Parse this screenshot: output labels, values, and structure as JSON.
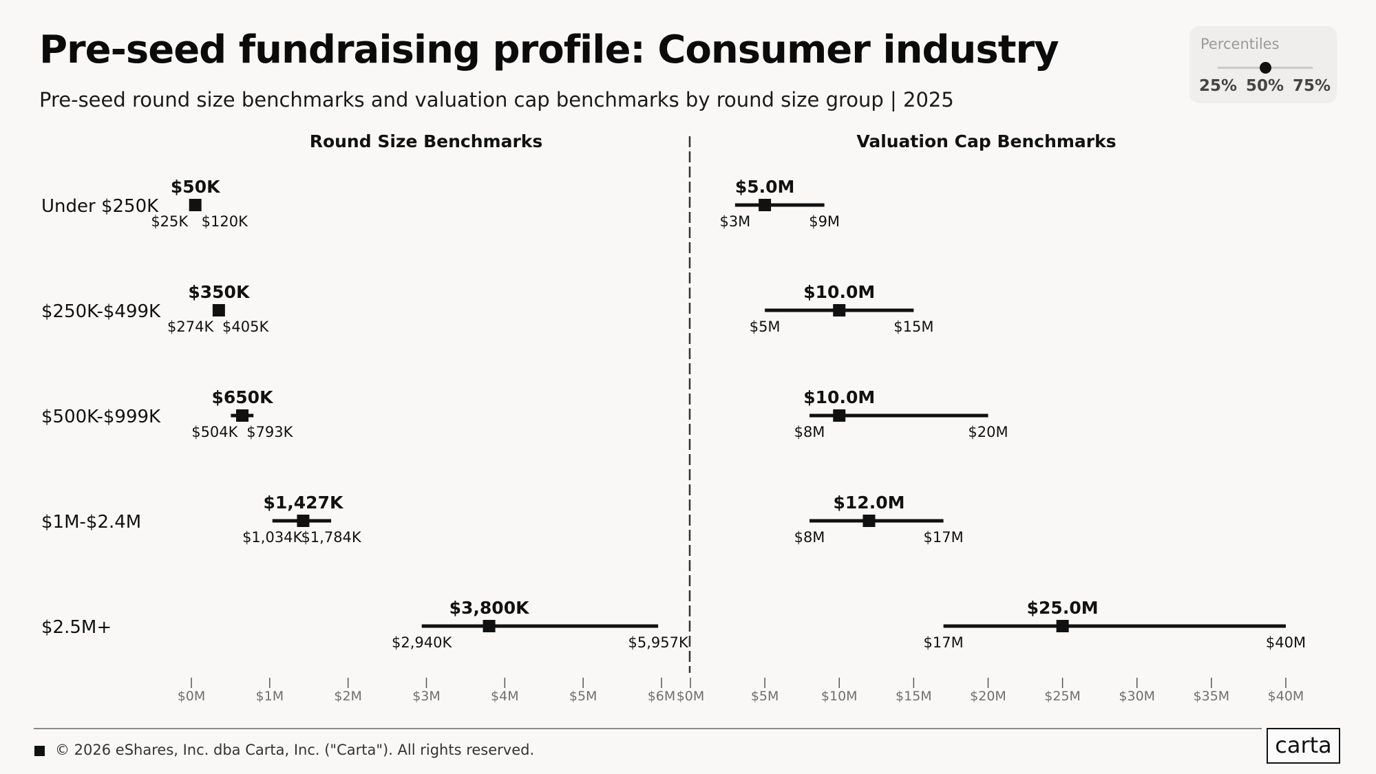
{
  "header": {
    "title": "Pre-seed fundraising profile: Consumer industry",
    "subtitle": "Pre-seed round size benchmarks and valuation cap benchmarks by round size group | 2025"
  },
  "legend": {
    "title": "Percentiles",
    "labels": [
      "25%",
      "50%",
      "75%"
    ],
    "selected": "50%"
  },
  "footer": {
    "copyright": "© 2026 eShares, Inc. dba Carta, Inc. (\"Carta\"). All rights reserved.",
    "logo": "carta"
  },
  "colors": {
    "background": "#f9f8f7",
    "mark": "#111111",
    "axis_text": "#6f6f6f"
  },
  "chart_data": [
    {
      "type": "range-dot",
      "title": "Round Size Benchmarks",
      "unit": "thousands USD",
      "categories": [
        "Under $250K",
        "$250K-$499K",
        "$500K-$999K",
        "$1M-$2.4M",
        "$2.5M+"
      ],
      "series": [
        {
          "name": "25%",
          "values": [
            25,
            274,
            504,
            1034,
            2940
          ]
        },
        {
          "name": "50%",
          "values": [
            50,
            350,
            650,
            1427,
            3800
          ]
        },
        {
          "name": "75%",
          "values": [
            120,
            405,
            793,
            1784,
            5957
          ]
        }
      ],
      "value_labels": {
        "p25": [
          "$25K",
          "$274K",
          "$504K",
          "$1,034K",
          "$2,940K"
        ],
        "p50": [
          "$50K",
          "$350K",
          "$650K",
          "$1,427K",
          "$3,800K"
        ],
        "p75": [
          "$120K",
          "$405K",
          "$793K",
          "$1,784K",
          "$5,957K"
        ]
      },
      "x_ticks": [
        0,
        1000,
        2000,
        3000,
        4000,
        5000,
        6000
      ],
      "x_tick_labels": [
        "$0M",
        "$1M",
        "$2M",
        "$3M",
        "$4M",
        "$5M",
        "$6M"
      ],
      "xlim": [
        0,
        6000
      ]
    },
    {
      "type": "range-dot",
      "title": "Valuation Cap Benchmarks",
      "unit": "millions USD",
      "categories": [
        "Under $250K",
        "$250K-$499K",
        "$500K-$999K",
        "$1M-$2.4M",
        "$2.5M+"
      ],
      "series": [
        {
          "name": "25%",
          "values": [
            3,
            5,
            8,
            8,
            17
          ]
        },
        {
          "name": "50%",
          "values": [
            5.0,
            10.0,
            10.0,
            12.0,
            25.0
          ]
        },
        {
          "name": "75%",
          "values": [
            9,
            15,
            20,
            17,
            40
          ]
        }
      ],
      "value_labels": {
        "p25": [
          "$3M",
          "$5M",
          "$8M",
          "$8M",
          "$17M"
        ],
        "p50": [
          "$5.0M",
          "$10.0M",
          "$10.0M",
          "$12.0M",
          "$25.0M"
        ],
        "p75": [
          "$9M",
          "$15M",
          "$20M",
          "$17M",
          "$40M"
        ]
      },
      "x_ticks": [
        0,
        5,
        10,
        15,
        20,
        25,
        30,
        35,
        40
      ],
      "x_tick_labels": [
        "$0M",
        "$5M",
        "$10M",
        "$15M",
        "$20M",
        "$25M",
        "$30M",
        "$35M",
        "$40M"
      ],
      "xlim": [
        0,
        40
      ]
    }
  ]
}
